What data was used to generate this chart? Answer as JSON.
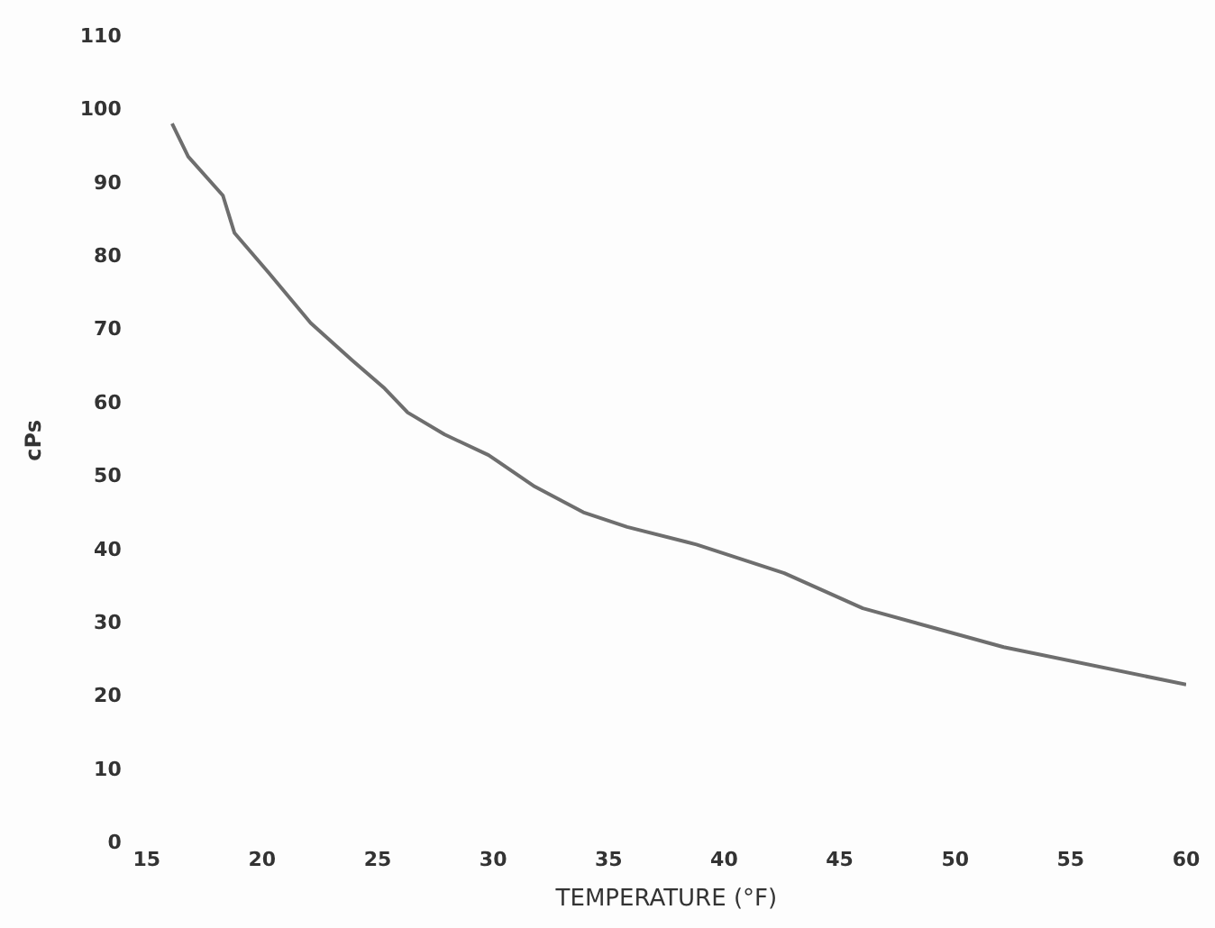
{
  "chart_data": {
    "type": "line",
    "xlabel": "TEMPERATURE (°F)",
    "ylabel": "cPs",
    "xlim": [
      15,
      60
    ],
    "xticks": [
      15,
      20,
      25,
      30,
      35,
      40,
      45,
      50,
      55,
      60
    ],
    "ylim": [
      0,
      110
    ],
    "yticks": [
      0,
      10,
      20,
      30,
      40,
      50,
      60,
      70,
      80,
      90,
      100,
      110
    ],
    "grid": false,
    "legend": false,
    "marker": "none",
    "line_style": "solid",
    "series": [
      {
        "color": "#6e6e6e",
        "x": [
          16.1,
          16.8,
          18.3,
          18.8,
          20.3,
          22.1,
          23.9,
          25.3,
          26.3,
          27.9,
          29.8,
          31.8,
          33.9,
          35.8,
          38.8,
          42.6,
          46.0,
          52.1,
          60.0
        ],
        "values": [
          98.2,
          93.7,
          88.4,
          83.3,
          77.8,
          71.0,
          65.9,
          62.1,
          58.8,
          55.8,
          53.0,
          48.7,
          45.2,
          43.2,
          40.8,
          36.9,
          32.1,
          26.8,
          21.7
        ]
      }
    ]
  }
}
